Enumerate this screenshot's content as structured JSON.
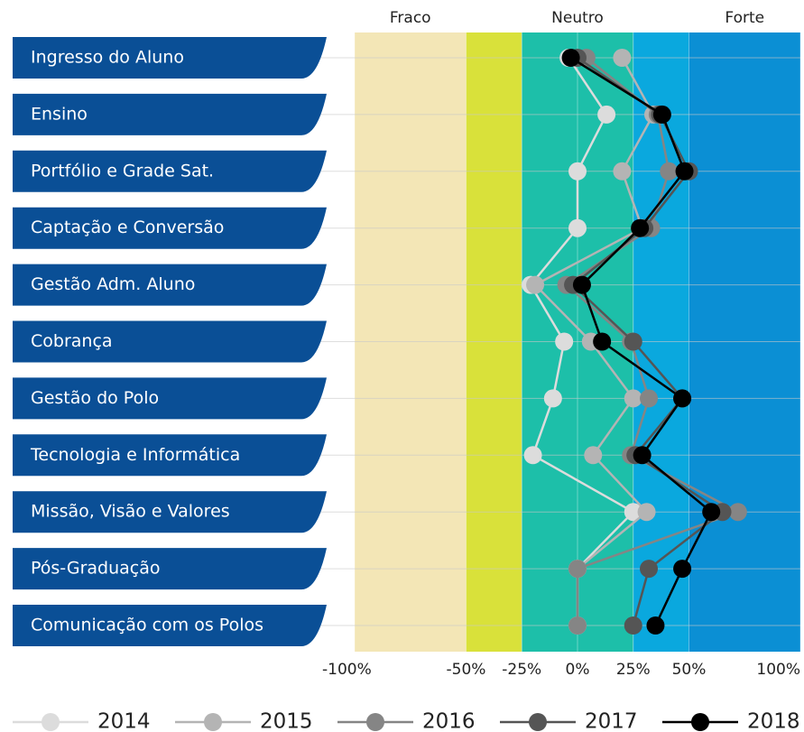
{
  "chart_data": {
    "type": "dot-line",
    "categories": [
      "Ingresso do Aluno",
      "Ensino",
      "Portfólio e Grade Sat.",
      "Captação e Conversão",
      "Gestão Adm. Aluno",
      "Cobrança",
      "Gestão do Polo",
      "Tecnologia e Informática",
      "Missão, Visão e Valores",
      "Pós-Graduação",
      "Comunicação com os Polos"
    ],
    "series": [
      {
        "name": "2014",
        "color": "#dcdcdc",
        "values": [
          -4,
          13,
          0,
          0,
          -21,
          -6,
          -11,
          -20,
          25,
          0,
          0
        ]
      },
      {
        "name": "2015",
        "color": "#b4b4b4",
        "values": [
          20,
          34,
          20,
          29,
          -19,
          6,
          25,
          7,
          31,
          0,
          0
        ]
      },
      {
        "name": "2016",
        "color": "#858585",
        "values": [
          4,
          36,
          41,
          33,
          -5,
          24,
          32,
          24,
          72,
          0,
          0
        ]
      },
      {
        "name": "2017",
        "color": "#555555",
        "values": [
          0,
          37,
          50,
          30,
          -2,
          25,
          47,
          26,
          65,
          32,
          25
        ]
      },
      {
        "name": "2018",
        "color": "#000000",
        "values": [
          -3,
          38,
          48,
          28,
          2,
          11,
          47,
          29,
          60,
          47,
          35
        ]
      }
    ],
    "bands": [
      {
        "from": -100,
        "to": -50,
        "color": "#f3e6b6",
        "label": "Fraco"
      },
      {
        "from": -50,
        "to": -25,
        "color": "#d9e13a"
      },
      {
        "from": -25,
        "to": 25,
        "color": "#1dbfa9",
        "label": "Neutro"
      },
      {
        "from": 25,
        "to": 50,
        "color": "#0aa8de"
      },
      {
        "from": 50,
        "to": 100,
        "color": "#0b8fd4",
        "label": "Forte"
      }
    ],
    "xlim": [
      -100,
      100
    ],
    "xticks": [
      {
        "value": -100,
        "label": "-100%"
      },
      {
        "value": -50,
        "label": "-50%"
      },
      {
        "value": -25,
        "label": "-25%"
      },
      {
        "value": 0,
        "label": "0%"
      },
      {
        "value": 25,
        "label": "25%"
      },
      {
        "value": 50,
        "label": "50%"
      },
      {
        "value": 100,
        "label": "100%"
      }
    ],
    "label_color": "#0a4f96"
  }
}
